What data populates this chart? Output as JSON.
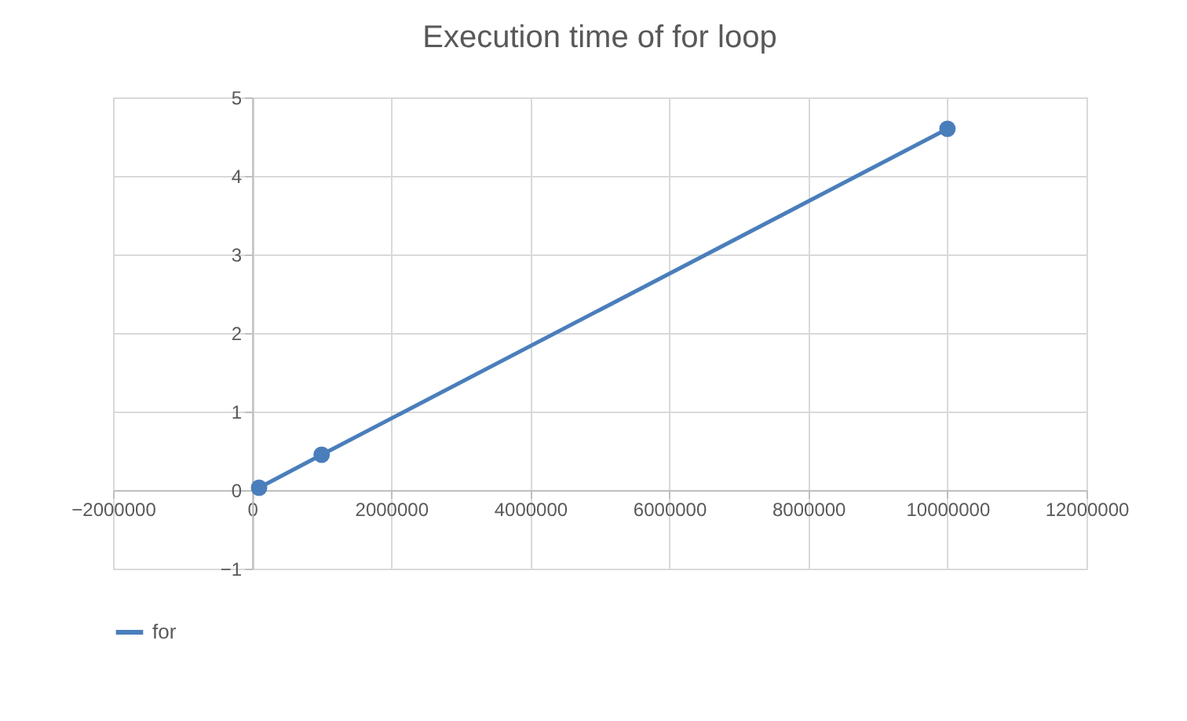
{
  "chart_data": {
    "type": "line",
    "title": "Execution time of for loop",
    "x": [
      100000,
      1000000,
      10000000
    ],
    "series": [
      {
        "name": "for",
        "color": "#4a7ebb",
        "values": [
          0.03,
          0.45,
          4.6
        ]
      }
    ],
    "xlim": [
      -2000000,
      12000000
    ],
    "xticks": [
      -2000000,
      0,
      2000000,
      4000000,
      6000000,
      8000000,
      10000000,
      12000000
    ],
    "ylim": [
      -1,
      5
    ],
    "yticks": [
      -1,
      0,
      1,
      2,
      3,
      4,
      5
    ],
    "grid": true,
    "legend": "bottom",
    "marker": "circle",
    "line_style": "solid"
  }
}
